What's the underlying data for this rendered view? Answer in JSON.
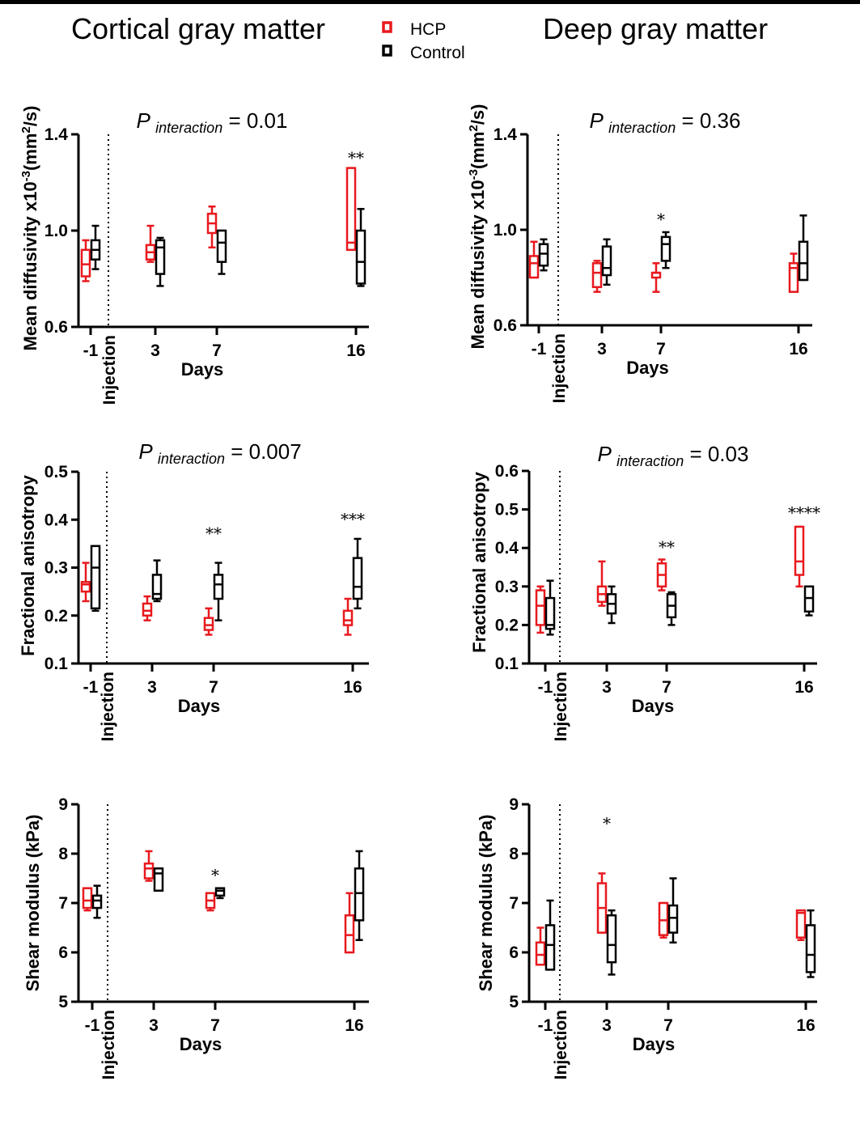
{
  "colors": {
    "hcp": "#e8191e",
    "control": "#000000",
    "text": "#000000"
  },
  "headers": {
    "left_title": "Cortical gray matter",
    "right_title": "Deep gray matter",
    "legend": [
      {
        "label": "HCP",
        "color": "#e8191e"
      },
      {
        "label": "Control",
        "color": "#000000"
      }
    ]
  },
  "chart_data": [
    {
      "type": "box",
      "title": "P interaction = 0.01",
      "p_label": "P",
      "p_sub": "interaction",
      "p_value": "= 0.01",
      "xlabel": "Days",
      "ylabel": "Mean diffusivity x10-3(mm2/s)",
      "ylabel_main": "Mean diffusivity x10",
      "ylabel_exp1": "-3",
      "ylabel_unit": "(mm",
      "ylabel_exp2": "2",
      "ylabel_end": "/s)",
      "ylim": [
        0.6,
        1.4
      ],
      "yticks": [
        "0.6",
        "1.0",
        "1.4"
      ],
      "xticks": [
        "-1",
        "3",
        "7",
        "16"
      ],
      "injection_label": "Injection",
      "hcp": [
        {
          "day": "-1",
          "min": 0.79,
          "q1": 0.81,
          "median": 0.86,
          "q3": 0.92,
          "max": 0.96
        },
        {
          "day": "3",
          "min": 0.87,
          "q1": 0.88,
          "median": 0.91,
          "q3": 0.94,
          "max": 1.02
        },
        {
          "day": "7",
          "min": 0.93,
          "q1": 0.99,
          "median": 1.03,
          "q3": 1.07,
          "max": 1.1
        },
        {
          "day": "16",
          "min": 0.92,
          "q1": 0.92,
          "median": 0.95,
          "q3": 1.26,
          "max": 1.26
        }
      ],
      "control": [
        {
          "day": "-1",
          "min": 0.84,
          "q1": 0.88,
          "median": 0.92,
          "q3": 0.96,
          "max": 1.02
        },
        {
          "day": "3",
          "min": 0.77,
          "q1": 0.82,
          "median": 0.93,
          "q3": 0.96,
          "max": 0.97
        },
        {
          "day": "7",
          "min": 0.82,
          "q1": 0.87,
          "median": 0.95,
          "q3": 1.0,
          "max": 1.0
        },
        {
          "day": "16",
          "min": 0.77,
          "q1": 0.78,
          "median": 0.87,
          "q3": 1.0,
          "max": 1.09
        }
      ],
      "annotations": [
        {
          "day": "16",
          "text": "**",
          "value": 1.3
        }
      ]
    },
    {
      "type": "box",
      "title": "P interaction = 0.36",
      "p_label": "P",
      "p_sub": "interaction",
      "p_value": "= 0.36",
      "xlabel": "Days",
      "ylabel": "Mean diffusivity x10-3(mm2/s)",
      "ylabel_main": "Mean diffusivity x10",
      "ylabel_exp1": "-3",
      "ylabel_unit": "(mm",
      "ylabel_exp2": "2",
      "ylabel_end": "/s)",
      "ylim": [
        0.6,
        1.4
      ],
      "yticks": [
        "0.6",
        "1.0",
        "1.4"
      ],
      "xticks": [
        "-1",
        "3",
        "7",
        "16"
      ],
      "injection_label": "Injection",
      "hcp": [
        {
          "day": "-1",
          "min": 0.8,
          "q1": 0.8,
          "median": 0.86,
          "q3": 0.89,
          "max": 0.95
        },
        {
          "day": "3",
          "min": 0.74,
          "q1": 0.76,
          "median": 0.82,
          "q3": 0.86,
          "max": 0.87
        },
        {
          "day": "7",
          "min": 0.74,
          "q1": 0.8,
          "median": 0.82,
          "q3": 0.82,
          "max": 0.86
        },
        {
          "day": "16",
          "min": 0.74,
          "q1": 0.74,
          "median": 0.84,
          "q3": 0.86,
          "max": 0.9
        }
      ],
      "control": [
        {
          "day": "-1",
          "min": 0.83,
          "q1": 0.85,
          "median": 0.9,
          "q3": 0.94,
          "max": 0.96
        },
        {
          "day": "3",
          "min": 0.77,
          "q1": 0.81,
          "median": 0.84,
          "q3": 0.93,
          "max": 0.96
        },
        {
          "day": "7",
          "min": 0.84,
          "q1": 0.87,
          "median": 0.94,
          "q3": 0.97,
          "max": 0.99
        },
        {
          "day": "16",
          "min": 0.79,
          "q1": 0.79,
          "median": 0.86,
          "q3": 0.95,
          "max": 1.06
        }
      ],
      "annotations": [
        {
          "day": "7",
          "text": "*",
          "value": 1.04
        }
      ]
    },
    {
      "type": "box",
      "title": "P interaction = 0.007",
      "p_label": "P",
      "p_sub": "interaction",
      "p_value": "= 0.007",
      "xlabel": "Days",
      "ylabel": "Fractional anisotropy",
      "ylim": [
        0.1,
        0.5
      ],
      "yticks": [
        "0.1",
        "0.2",
        "0.3",
        "0.4",
        "0.5"
      ],
      "xticks": [
        "-1",
        "3",
        "7",
        "16"
      ],
      "injection_label": "Injection",
      "hcp": [
        {
          "day": "-1",
          "min": 0.23,
          "q1": 0.25,
          "median": 0.265,
          "q3": 0.27,
          "max": 0.31
        },
        {
          "day": "3",
          "min": 0.19,
          "q1": 0.2,
          "median": 0.21,
          "q3": 0.225,
          "max": 0.24
        },
        {
          "day": "7",
          "min": 0.16,
          "q1": 0.17,
          "median": 0.18,
          "q3": 0.195,
          "max": 0.215
        },
        {
          "day": "16",
          "min": 0.16,
          "q1": 0.18,
          "median": 0.19,
          "q3": 0.21,
          "max": 0.235
        }
      ],
      "control": [
        {
          "day": "-1",
          "min": 0.21,
          "q1": 0.215,
          "median": 0.3,
          "q3": 0.345,
          "max": 0.345
        },
        {
          "day": "3",
          "min": 0.23,
          "q1": 0.235,
          "median": 0.245,
          "q3": 0.285,
          "max": 0.315
        },
        {
          "day": "7",
          "min": 0.19,
          "q1": 0.235,
          "median": 0.265,
          "q3": 0.285,
          "max": 0.31
        },
        {
          "day": "16",
          "min": 0.215,
          "q1": 0.235,
          "median": 0.26,
          "q3": 0.32,
          "max": 0.36
        }
      ],
      "annotations": [
        {
          "day": "7",
          "text": "**",
          "value": 0.37
        },
        {
          "day": "16",
          "text": "***",
          "value": 0.4
        }
      ]
    },
    {
      "type": "box",
      "title": "P interaction = 0.03",
      "p_label": "P",
      "p_sub": "interaction",
      "p_value": "= 0.03",
      "xlabel": "Days",
      "ylabel": "Fractional anisotropy",
      "ylim": [
        0.1,
        0.6
      ],
      "yticks": [
        "0.1",
        "0.2",
        "0.3",
        "0.4",
        "0.5",
        "0.6"
      ],
      "xticks": [
        "-1",
        "3",
        "7",
        "16"
      ],
      "injection_label": "Injection",
      "hcp": [
        {
          "day": "-1",
          "min": 0.18,
          "q1": 0.2,
          "median": 0.25,
          "q3": 0.29,
          "max": 0.3
        },
        {
          "day": "3",
          "min": 0.25,
          "q1": 0.26,
          "median": 0.28,
          "q3": 0.3,
          "max": 0.365
        },
        {
          "day": "7",
          "min": 0.29,
          "q1": 0.3,
          "median": 0.33,
          "q3": 0.36,
          "max": 0.37
        },
        {
          "day": "16",
          "min": 0.3,
          "q1": 0.33,
          "median": 0.365,
          "q3": 0.455,
          "max": 0.455
        }
      ],
      "control": [
        {
          "day": "-1",
          "min": 0.175,
          "q1": 0.19,
          "median": 0.2,
          "q3": 0.27,
          "max": 0.315
        },
        {
          "day": "3",
          "min": 0.205,
          "q1": 0.23,
          "median": 0.255,
          "q3": 0.28,
          "max": 0.3
        },
        {
          "day": "7",
          "min": 0.2,
          "q1": 0.22,
          "median": 0.25,
          "q3": 0.28,
          "max": 0.285
        },
        {
          "day": "16",
          "min": 0.225,
          "q1": 0.235,
          "median": 0.27,
          "q3": 0.3,
          "max": 0.3
        }
      ],
      "annotations": [
        {
          "day": "7",
          "text": "**",
          "value": 0.4
        },
        {
          "day": "16",
          "text": "****",
          "value": 0.49
        }
      ]
    },
    {
      "type": "box",
      "title": "",
      "xlabel": "Days",
      "ylabel": "Shear modulus (kPa)",
      "ylim": [
        5,
        9
      ],
      "yticks": [
        "5",
        "6",
        "7",
        "8",
        "9"
      ],
      "xticks": [
        "-1",
        "3",
        "7",
        "16"
      ],
      "injection_label": "Injection",
      "hcp": [
        {
          "day": "-1",
          "min": 6.85,
          "q1": 6.9,
          "median": 7.05,
          "q3": 7.3,
          "max": 7.3
        },
        {
          "day": "3",
          "min": 7.45,
          "q1": 7.5,
          "median": 7.7,
          "q3": 7.8,
          "max": 8.05
        },
        {
          "day": "7",
          "min": 6.85,
          "q1": 6.9,
          "median": 7.05,
          "q3": 7.2,
          "max": 7.2
        },
        {
          "day": "16",
          "min": 6.0,
          "q1": 6.0,
          "median": 6.35,
          "q3": 6.75,
          "max": 7.2
        }
      ],
      "control": [
        {
          "day": "-1",
          "min": 6.7,
          "q1": 6.9,
          "median": 7.05,
          "q3": 7.15,
          "max": 7.35
        },
        {
          "day": "3",
          "min": 7.25,
          "q1": 7.25,
          "median": 7.6,
          "q3": 7.7,
          "max": 7.7
        },
        {
          "day": "7",
          "min": 7.1,
          "q1": 7.15,
          "median": 7.25,
          "q3": 7.3,
          "max": 7.3
        },
        {
          "day": "16",
          "min": 6.25,
          "q1": 6.65,
          "median": 7.2,
          "q3": 7.7,
          "max": 8.05
        }
      ],
      "annotations": [
        {
          "day": "7",
          "text": "*",
          "value": 7.55
        }
      ]
    },
    {
      "type": "box",
      "title": "",
      "xlabel": "Days",
      "ylabel": "Shear modulus (kPa)",
      "ylim": [
        5,
        9
      ],
      "yticks": [
        "5",
        "6",
        "7",
        "8",
        "9"
      ],
      "xticks": [
        "-1",
        "3",
        "7",
        "16"
      ],
      "injection_label": "Injection",
      "hcp": [
        {
          "day": "-1",
          "min": 5.75,
          "q1": 5.75,
          "median": 5.95,
          "q3": 6.2,
          "max": 6.5
        },
        {
          "day": "3",
          "min": 6.4,
          "q1": 6.4,
          "median": 6.9,
          "q3": 7.4,
          "max": 7.6
        },
        {
          "day": "7",
          "min": 6.3,
          "q1": 6.35,
          "median": 6.65,
          "q3": 7.0,
          "max": 7.0
        },
        {
          "day": "16",
          "min": 6.25,
          "q1": 6.3,
          "median": 6.8,
          "q3": 6.85,
          "max": 6.85
        }
      ],
      "control": [
        {
          "day": "-1",
          "min": 5.65,
          "q1": 5.65,
          "median": 6.15,
          "q3": 6.55,
          "max": 7.05
        },
        {
          "day": "3",
          "min": 5.55,
          "q1": 5.8,
          "median": 6.15,
          "q3": 6.75,
          "max": 6.85
        },
        {
          "day": "7",
          "min": 6.2,
          "q1": 6.4,
          "median": 6.7,
          "q3": 6.95,
          "max": 7.5
        },
        {
          "day": "16",
          "min": 5.5,
          "q1": 5.6,
          "median": 5.95,
          "q3": 6.55,
          "max": 6.85
        }
      ],
      "annotations": [
        {
          "day": "3",
          "text": "*",
          "value": 8.6
        }
      ]
    }
  ]
}
